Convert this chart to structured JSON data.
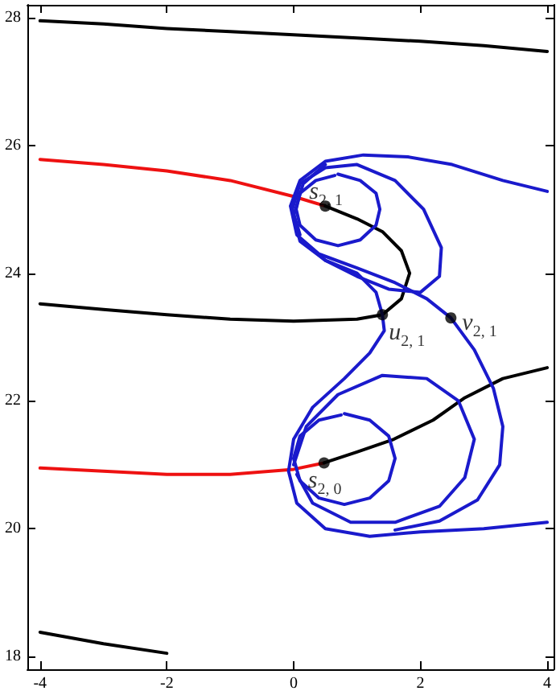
{
  "chart_data": {
    "type": "line",
    "marker": "none",
    "line_style": "solid",
    "xlim": [
      -4.2,
      4.1
    ],
    "ylim": [
      17.8,
      28.2
    ],
    "xticks": [
      -4,
      -2,
      0,
      2,
      4
    ],
    "yticks": [
      18,
      20,
      22,
      24,
      26,
      28
    ],
    "series": [
      {
        "color": "#000000",
        "x": [
          -4,
          -3,
          -2,
          -1,
          0,
          1,
          2,
          3,
          4
        ],
        "values": [
          27.95,
          27.9,
          27.83,
          27.78,
          27.73,
          27.68,
          27.63,
          27.56,
          27.47
        ]
      },
      {
        "color": "#ee1111",
        "x": [
          -4,
          -3,
          -2,
          -1,
          0,
          0.5
        ],
        "values": [
          25.78,
          25.7,
          25.6,
          25.45,
          25.2,
          25.05
        ]
      },
      {
        "color": "#000000",
        "x": [
          -4,
          -3,
          -2,
          -1,
          0,
          1,
          1.4,
          1.7,
          1.83,
          1.7,
          1.4,
          1,
          0.5
        ],
        "values": [
          23.52,
          23.43,
          23.35,
          23.28,
          23.25,
          23.28,
          23.35,
          23.6,
          24.0,
          24.35,
          24.65,
          24.85,
          25.05
        ]
      },
      {
        "color": "#ee1111",
        "x": [
          -4,
          -3,
          -2,
          -1,
          0,
          0.48
        ],
        "values": [
          20.95,
          20.9,
          20.85,
          20.85,
          20.93,
          21.03
        ]
      },
      {
        "color": "#000000",
        "x": [
          0.48,
          1,
          1.58,
          2.2,
          2.7,
          3.3,
          4
        ],
        "values": [
          21.03,
          21.2,
          21.4,
          21.7,
          22.05,
          22.35,
          22.52
        ]
      },
      {
        "color": "#000000",
        "x": [
          -4,
          -3,
          -2
        ],
        "values": [
          18.38,
          18.2,
          18.05
        ]
      },
      {
        "color": "#1a1acc",
        "x": [
          4,
          3.3,
          2.5,
          1.8,
          1.1,
          0.5,
          0.1,
          -0.05,
          0.05,
          0.4,
          1,
          1.6,
          2.1,
          2.48,
          2.85,
          3.15,
          3.3,
          3.25,
          2.9,
          2.3,
          1.6
        ],
        "values": [
          25.28,
          25.45,
          25.7,
          25.82,
          25.85,
          25.75,
          25.45,
          25.05,
          24.6,
          24.3,
          24.08,
          23.85,
          23.6,
          23.3,
          22.8,
          22.2,
          21.6,
          21.0,
          20.45,
          20.12,
          19.98
        ]
      },
      {
        "color": "#1a1acc",
        "x": [
          0.1,
          -0.02,
          0.1,
          0.5,
          1,
          1.6,
          2.05,
          2.33,
          2.3,
          2,
          1.5,
          1,
          0.5,
          0.15
        ],
        "values": [
          24.6,
          25,
          25.4,
          25.65,
          25.7,
          25.45,
          25,
          24.4,
          23.95,
          23.7,
          23.75,
          23.95,
          24.2,
          24.5
        ]
      },
      {
        "color": "#1a1acc",
        "x": [
          0,
          0.2,
          0.7,
          1.4,
          2.1,
          2.6,
          2.85,
          2.7,
          2.3,
          1.6,
          0.9,
          0.3,
          0.05
        ],
        "values": [
          21,
          21.6,
          22.1,
          22.4,
          22.35,
          22,
          21.4,
          20.8,
          20.35,
          20.1,
          20.1,
          20.4,
          20.85
        ]
      },
      {
        "color": "#1a1acc",
        "x": [
          4,
          3,
          2,
          1.2,
          0.5,
          0.05,
          -0.08,
          0,
          0.3,
          0.8,
          1.2,
          1.43,
          1.4,
          1.3,
          1,
          0.5,
          0.1,
          0,
          0.15,
          0.5
        ],
        "values": [
          20.1,
          20,
          19.95,
          19.88,
          20,
          20.4,
          20.9,
          21.4,
          21.9,
          22.35,
          22.75,
          23.1,
          23.35,
          23.7,
          24.0,
          24.2,
          24.5,
          24.9,
          25.4,
          25.7
        ]
      },
      {
        "color": "#1a1acc",
        "x": [
          0.7,
          1.05,
          1.3,
          1.36,
          1.3,
          1.05,
          0.7,
          0.35,
          0.1,
          0.04,
          0.1,
          0.35,
          0.65
        ],
        "values": [
          25.55,
          25.45,
          25.25,
          25,
          24.75,
          24.52,
          24.43,
          24.52,
          24.75,
          25,
          25.25,
          25.45,
          25.53
        ]
      },
      {
        "color": "#1a1acc",
        "x": [
          0.8,
          1.2,
          1.5,
          1.6,
          1.5,
          1.2,
          0.8,
          0.4,
          0.1,
          0,
          0.1,
          0.4,
          0.75
        ],
        "values": [
          21.8,
          21.7,
          21.45,
          21.1,
          20.75,
          20.48,
          20.38,
          20.48,
          20.75,
          21.1,
          21.45,
          21.7,
          21.78
        ]
      },
      {
        "type": "scatter",
        "marker": "circle",
        "color": "#000000",
        "x": [
          0.5,
          1.4,
          2.48,
          0.48
        ],
        "values": [
          25.05,
          23.35,
          23.3,
          21.03
        ]
      }
    ],
    "annotations": [
      {
        "text": "s$_{2, 1}$",
        "x": 0.5,
        "y": 25.05
      },
      {
        "text": "u$_{2, 1}$",
        "x": 1.4,
        "y": 23.35
      },
      {
        "text": "v$_{2, 1}$",
        "x": 2.48,
        "y": 23.3
      },
      {
        "text": "s$_{2, 0}$",
        "x": 0.48,
        "y": 21.03
      }
    ]
  }
}
